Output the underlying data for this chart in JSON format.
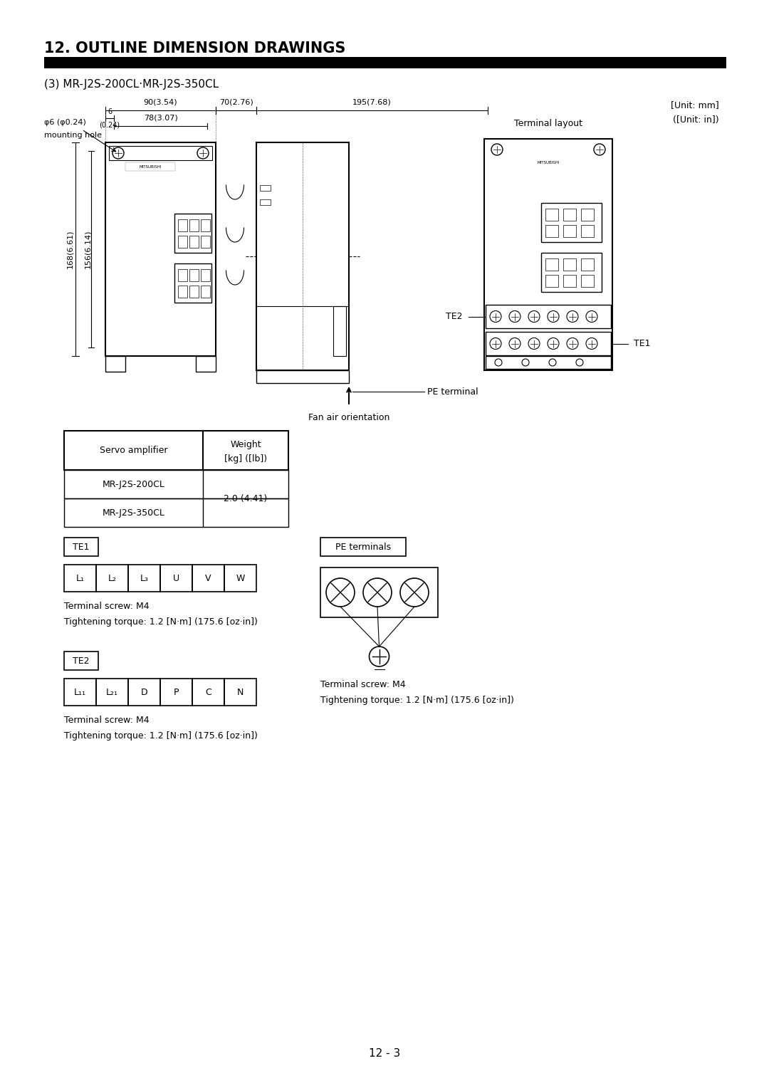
{
  "title": "12. OUTLINE DIMENSION DRAWINGS",
  "subtitle": "(3) MR-J2S-200CL·MR-J2S-350CL",
  "unit_mm": "[Unit: mm]",
  "unit_in": "([Unit: in])",
  "bg_color": "#ffffff",
  "text_color": "#000000",
  "page_number": "12 - 3",
  "phi6": "φ6 (φ0.24)",
  "mounting_hole": "mounting hole",
  "dim_90": "90(3.54)",
  "dim_78": "78(3.07)",
  "dim_6": "6",
  "dim_024": "(0.24)",
  "dim_168": "168(6.61)",
  "dim_156": "156(6.14)",
  "dim_70": "70(2.76)",
  "dim_195": "195(7.68)",
  "terminal_layout": "Terminal layout",
  "te2_tag": "TE2",
  "te1_tag": "TE1",
  "pe_terminal": "PE terminal",
  "fan_air": "Fan air orientation",
  "tbl_col1": "Servo amplifier",
  "tbl_col2_1": "Weight",
  "tbl_col2_2": "[kg] ([lb])",
  "tbl_row1": "MR-J2S-200CL",
  "tbl_row2": "MR-J2S-350CL",
  "tbl_val": "2.0 (4.41)",
  "te1_label": "TE1",
  "te1_terms": [
    "L₁",
    "L₂",
    "L₃",
    "U",
    "V",
    "W"
  ],
  "te1_screw": "Terminal screw: M4",
  "te1_torque": "Tightening torque: 1.2 [N·m] (175.6 [oz·in])",
  "te2_label": "TE2",
  "te2_terms": [
    "L₁₁",
    "L₂₁",
    "D",
    "P",
    "C",
    "N"
  ],
  "te2_screw": "Terminal screw: M4",
  "te2_torque": "Tightening torque: 1.2 [N·m] (175.6 [oz·in])",
  "pe_label": "PE terminals",
  "pe_screw": "Terminal screw: M4",
  "pe_torque": "Tightening torque: 1.2 [N·m] (175.6 [oz·in])"
}
